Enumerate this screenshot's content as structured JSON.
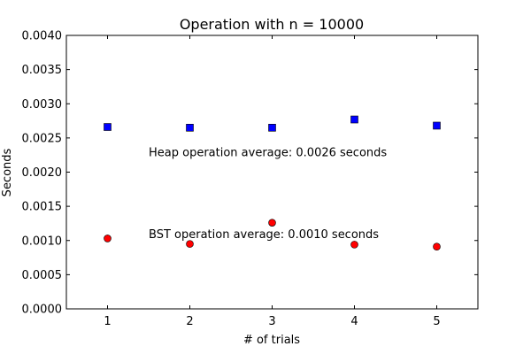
{
  "chart_data": {
    "type": "scatter",
    "title": "Operation with n = 10000",
    "xlabel": "# of trials",
    "ylabel": "Seconds",
    "xlim": [
      0.5,
      5.5
    ],
    "ylim": [
      0.0,
      0.004
    ],
    "x_ticks": [
      1,
      2,
      3,
      4,
      5
    ],
    "y_ticks": [
      "0.0000",
      "0.0005",
      "0.0010",
      "0.0015",
      "0.0020",
      "0.0025",
      "0.0030",
      "0.0035",
      "0.0040"
    ],
    "grid": false,
    "series": [
      {
        "marker": "square",
        "color": "#0000ff",
        "x": [
          1,
          2,
          3,
          4,
          5
        ],
        "y": [
          0.00266,
          0.00265,
          0.00265,
          0.00277,
          0.00268
        ]
      },
      {
        "marker": "circle",
        "color": "#ff0000",
        "x": [
          1,
          2,
          3,
          4,
          5
        ],
        "y": [
          0.00103,
          0.00095,
          0.00126,
          0.00094,
          0.00091
        ]
      }
    ],
    "annotations": [
      {
        "text": "Heap operation average: 0.0026 seconds",
        "x": 1.5,
        "y": 0.0023
      },
      {
        "text": "BST operation average: 0.0010 seconds",
        "x": 1.5,
        "y": 0.0011
      }
    ]
  }
}
